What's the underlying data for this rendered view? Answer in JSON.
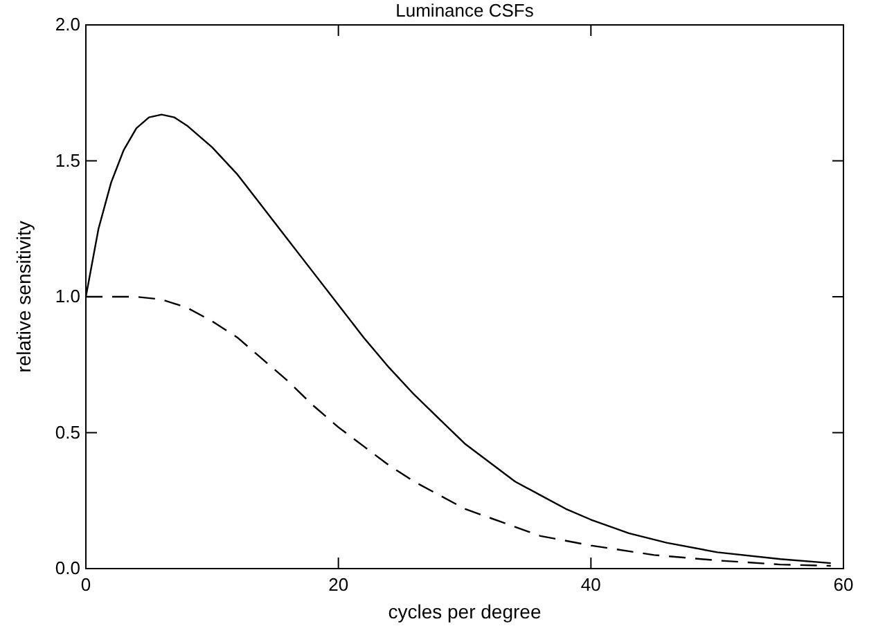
{
  "chart_data": {
    "type": "line",
    "title": "Luminance CSFs",
    "xlabel": "cycles per degree",
    "ylabel": "relative sensitivity",
    "xlim": [
      0,
      60
    ],
    "xticks": [
      0,
      20,
      40,
      60
    ],
    "ylim": [
      0,
      2
    ],
    "yticks": [
      {
        "value": 0,
        "label": "0.0"
      },
      0.5,
      {
        "value": 1,
        "label": "1.0"
      },
      1.5,
      {
        "value": 2,
        "label": "2.0"
      }
    ],
    "series": [
      {
        "color": "#000000",
        "line_style": "solid",
        "x": [
          0,
          1,
          2,
          3,
          4,
          5,
          6,
          7,
          8,
          10,
          12,
          14,
          16,
          18,
          20,
          22,
          24,
          26,
          28,
          30,
          32,
          34,
          36,
          38,
          40,
          43,
          46,
          50,
          55,
          59
        ],
        "values": [
          1.0,
          1.25,
          1.42,
          1.54,
          1.62,
          1.66,
          1.67,
          1.66,
          1.63,
          1.55,
          1.45,
          1.33,
          1.21,
          1.09,
          0.97,
          0.85,
          0.74,
          0.64,
          0.55,
          0.46,
          0.39,
          0.32,
          0.27,
          0.22,
          0.18,
          0.13,
          0.095,
          0.06,
          0.035,
          0.02
        ]
      },
      {
        "color": "#000000",
        "line_style": "dashed",
        "x": [
          0,
          2,
          4,
          6,
          8,
          10,
          12,
          14,
          16,
          18,
          20,
          22,
          24,
          26,
          28,
          30,
          33,
          36,
          40,
          45,
          50,
          55,
          59
        ],
        "values": [
          1,
          1,
          1,
          0.99,
          0.96,
          0.91,
          0.85,
          0.77,
          0.69,
          0.6,
          0.52,
          0.45,
          0.38,
          0.32,
          0.27,
          0.22,
          0.17,
          0.12,
          0.085,
          0.05,
          0.03,
          0.015,
          0.01
        ]
      }
    ]
  }
}
